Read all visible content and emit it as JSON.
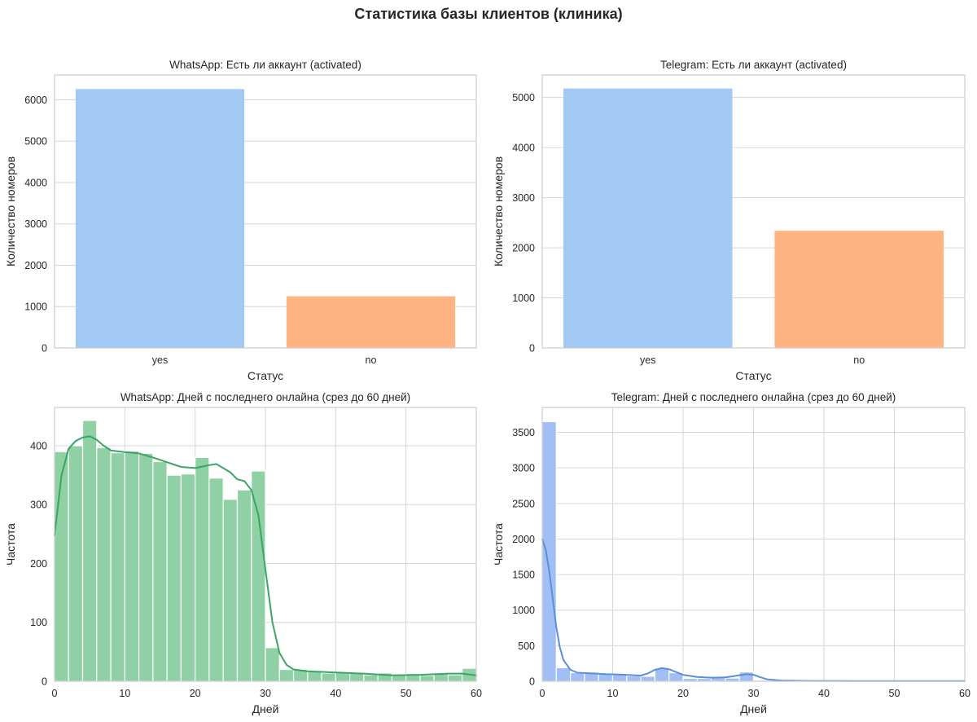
{
  "figure": {
    "title": "Статистика базы клиентов (клиника)"
  },
  "chart_data": [
    {
      "id": "wa_bar",
      "type": "bar",
      "title": "WhatsApp: Есть ли аккаунт (activated)",
      "xlabel": "Статус",
      "ylabel": "Количество номеров",
      "categories": [
        "yes",
        "no"
      ],
      "values": [
        6260,
        1250
      ],
      "colors": [
        "#a1c9f4",
        "#ffb482"
      ],
      "ylim": [
        0,
        6600
      ],
      "yticks": [
        0,
        1000,
        2000,
        3000,
        4000,
        5000,
        6000
      ],
      "grid": "y"
    },
    {
      "id": "tg_bar",
      "type": "bar",
      "title": "Telegram: Есть ли аккаунт (activated)",
      "xlabel": "Статус",
      "ylabel": "Количество номеров",
      "categories": [
        "yes",
        "no"
      ],
      "values": [
        5180,
        2340
      ],
      "colors": [
        "#a1c9f4",
        "#ffb482"
      ],
      "ylim": [
        0,
        5450
      ],
      "yticks": [
        0,
        1000,
        2000,
        3000,
        4000,
        5000
      ],
      "grid": "y"
    },
    {
      "id": "wa_hist",
      "type": "bar",
      "title": "WhatsApp: Дней с последнего онлайна (срез до 60 дней)",
      "xlabel": "Дней",
      "ylabel": "Частота",
      "bin_width": 2,
      "bin_start": 0,
      "values": [
        390,
        400,
        443,
        397,
        388,
        391,
        387,
        373,
        350,
        352,
        380,
        345,
        309,
        325,
        357,
        57,
        20,
        20,
        18,
        14,
        15,
        14,
        11,
        14,
        12,
        13,
        10,
        13,
        11,
        22
      ],
      "kde": [
        [
          0,
          248
        ],
        [
          1,
          350
        ],
        [
          2,
          395
        ],
        [
          3,
          408
        ],
        [
          4,
          414
        ],
        [
          5,
          416
        ],
        [
          6,
          410
        ],
        [
          7,
          400
        ],
        [
          8,
          392
        ],
        [
          10,
          389
        ],
        [
          12,
          387
        ],
        [
          14,
          380
        ],
        [
          16,
          372
        ],
        [
          18,
          364
        ],
        [
          20,
          362
        ],
        [
          22,
          367
        ],
        [
          23,
          369
        ],
        [
          25,
          355
        ],
        [
          26,
          343
        ],
        [
          27,
          340
        ],
        [
          28,
          325
        ],
        [
          29,
          282
        ],
        [
          30,
          190
        ],
        [
          31,
          100
        ],
        [
          32,
          48
        ],
        [
          33,
          28
        ],
        [
          34,
          20
        ],
        [
          36,
          17
        ],
        [
          40,
          15
        ],
        [
          44,
          13
        ],
        [
          48,
          10
        ],
        [
          52,
          11
        ],
        [
          56,
          13
        ],
        [
          58,
          13
        ],
        [
          60,
          10
        ]
      ],
      "colors": {
        "bar": "#8fd1a4",
        "line": "#3aa564"
      },
      "xlim": [
        0,
        60
      ],
      "ylim": [
        0,
        465
      ],
      "xticks": [
        0,
        10,
        20,
        30,
        40,
        50,
        60
      ],
      "yticks": [
        0,
        100,
        200,
        300,
        400
      ],
      "grid": "both"
    },
    {
      "id": "tg_hist",
      "type": "bar",
      "title": "Telegram: Дней с последнего онлайна (срез до 60 дней)",
      "xlabel": "Дней",
      "ylabel": "Частота",
      "bin_width": 2,
      "bin_start": 0,
      "values": [
        3650,
        190,
        120,
        130,
        100,
        95,
        75,
        70,
        185,
        120,
        40,
        40,
        50,
        45,
        130,
        15,
        10,
        8,
        6,
        5,
        4,
        4,
        3,
        3,
        3,
        2,
        2,
        2,
        2,
        2
      ],
      "kde": [
        [
          0,
          2000
        ],
        [
          0.5,
          1850
        ],
        [
          1,
          1550
        ],
        [
          1.5,
          1150
        ],
        [
          2,
          760
        ],
        [
          2.5,
          480
        ],
        [
          3,
          300
        ],
        [
          4,
          160
        ],
        [
          5,
          120
        ],
        [
          7,
          110
        ],
        [
          9,
          100
        ],
        [
          11,
          95
        ],
        [
          13,
          85
        ],
        [
          14,
          80
        ],
        [
          15,
          110
        ],
        [
          16,
          160
        ],
        [
          17,
          185
        ],
        [
          18,
          170
        ],
        [
          19,
          130
        ],
        [
          20,
          90
        ],
        [
          22,
          60
        ],
        [
          24,
          50
        ],
        [
          26,
          55
        ],
        [
          28,
          85
        ],
        [
          29,
          100
        ],
        [
          30,
          90
        ],
        [
          31,
          55
        ],
        [
          32,
          25
        ],
        [
          34,
          10
        ],
        [
          38,
          5
        ],
        [
          45,
          3
        ],
        [
          60,
          2
        ]
      ],
      "colors": {
        "bar": "#a1bef5",
        "line": "#5b8fdc"
      },
      "xlim": [
        0,
        60
      ],
      "ylim": [
        0,
        3850
      ],
      "xticks": [
        0,
        10,
        20,
        30,
        40,
        50,
        60
      ],
      "yticks": [
        0,
        500,
        1000,
        1500,
        2000,
        2500,
        3000,
        3500
      ],
      "grid": "both"
    }
  ]
}
